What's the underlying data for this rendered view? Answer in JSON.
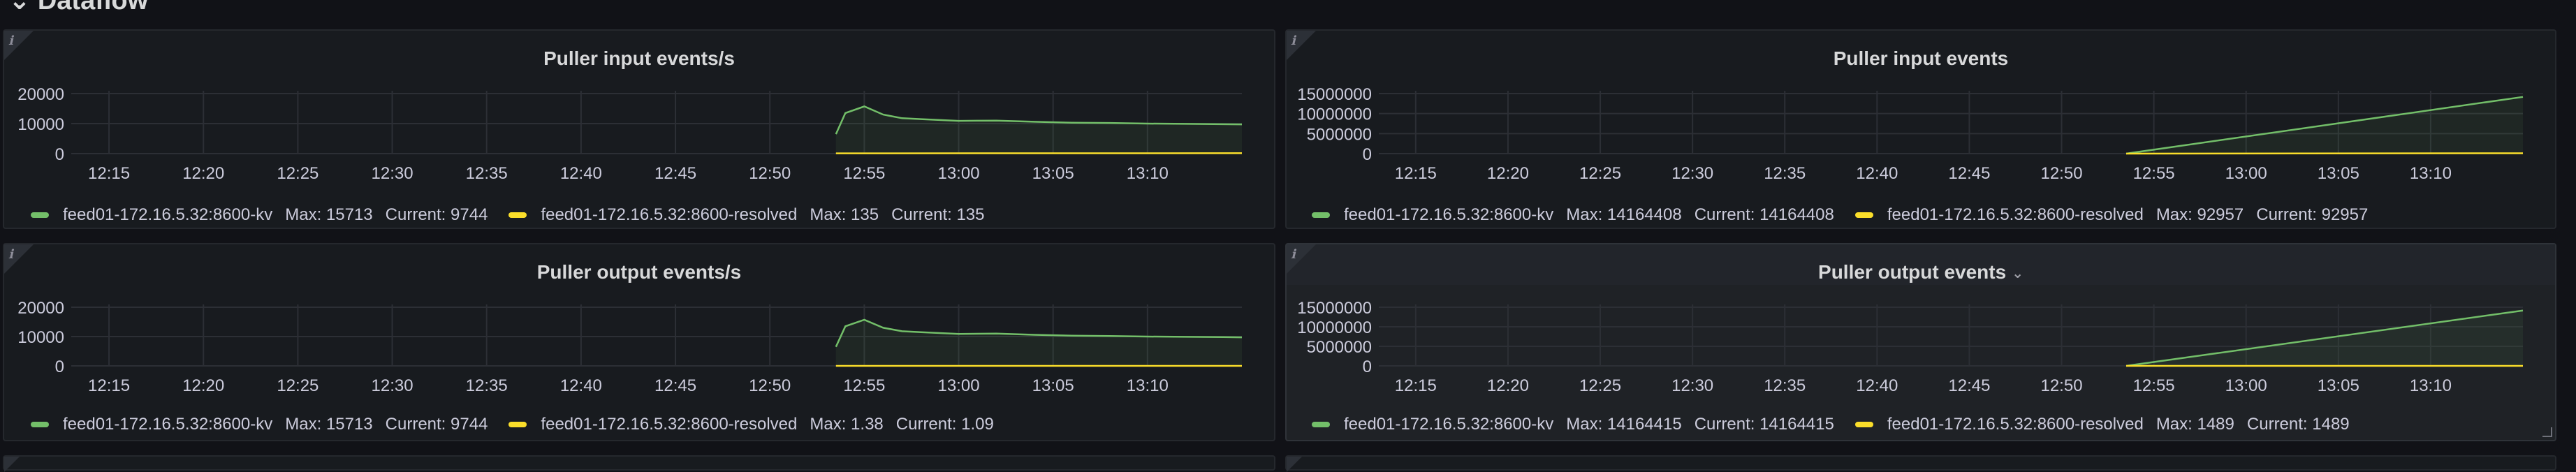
{
  "row": {
    "title": "Dataflow",
    "chevron_icon": "chevron-down-icon"
  },
  "info_icon": "ℹ",
  "x_ticks": [
    "12:15",
    "12:20",
    "12:25",
    "12:30",
    "12:35",
    "12:40",
    "12:45",
    "12:50",
    "12:55",
    "13:00",
    "13:05",
    "13:10"
  ],
  "colors": {
    "kv": "#73bf69",
    "resolved": "#fade2a"
  },
  "chart_data": [
    {
      "type": "line",
      "title": "Puller input events/s",
      "x_ticks": [
        "12:15",
        "12:20",
        "12:25",
        "12:30",
        "12:35",
        "12:40",
        "12:45",
        "12:50",
        "12:55",
        "13:00",
        "13:05",
        "13:10"
      ],
      "y_ticks": [
        "20000",
        "10000",
        "0"
      ],
      "ylim": [
        0,
        20000
      ],
      "grid": true,
      "legend_position": "bottom",
      "series": [
        {
          "name": "feed01-172.16.5.32:8600-kv",
          "color": "#73bf69",
          "max": "15713",
          "current": "9744",
          "points": [
            [
              "12:53:30",
              6500
            ],
            [
              "12:54",
              13500
            ],
            [
              "12:55",
              15713
            ],
            [
              "12:56",
              13000
            ],
            [
              "12:57",
              11800
            ],
            [
              "12:58",
              11500
            ],
            [
              "13:00",
              10900
            ],
            [
              "13:02",
              11000
            ],
            [
              "13:04",
              10600
            ],
            [
              "13:06",
              10300
            ],
            [
              "13:08",
              10200
            ],
            [
              "13:10",
              10000
            ],
            [
              "13:12",
              9900
            ],
            [
              "13:14",
              9800
            ],
            [
              "13:15",
              9744
            ]
          ]
        },
        {
          "name": "feed01-172.16.5.32:8600-resolved",
          "color": "#fade2a",
          "max": "135",
          "current": "135",
          "points": [
            [
              "12:53:30",
              100
            ],
            [
              "13:15",
              135
            ]
          ]
        }
      ]
    },
    {
      "type": "line",
      "title": "Puller input events",
      "x_ticks": [
        "12:15",
        "12:20",
        "12:25",
        "12:30",
        "12:35",
        "12:40",
        "12:45",
        "12:50",
        "12:55",
        "13:00",
        "13:05",
        "13:10"
      ],
      "y_ticks": [
        "15000000",
        "10000000",
        "5000000",
        "0"
      ],
      "ylim": [
        0,
        15000000
      ],
      "grid": true,
      "legend_position": "bottom",
      "series": [
        {
          "name": "feed01-172.16.5.32:8600-kv",
          "color": "#73bf69",
          "max": "14164408",
          "current": "14164408",
          "points": [
            [
              "12:53:30",
              0
            ],
            [
              "13:15",
              14164408
            ]
          ]
        },
        {
          "name": "feed01-172.16.5.32:8600-resolved",
          "color": "#fade2a",
          "max": "92957",
          "current": "92957",
          "points": [
            [
              "12:53:30",
              0
            ],
            [
              "13:15",
              92957
            ]
          ]
        }
      ]
    },
    {
      "type": "line",
      "title": "Puller output events/s",
      "x_ticks": [
        "12:15",
        "12:20",
        "12:25",
        "12:30",
        "12:35",
        "12:40",
        "12:45",
        "12:50",
        "12:55",
        "13:00",
        "13:05",
        "13:10"
      ],
      "y_ticks": [
        "20000",
        "10000",
        "0"
      ],
      "ylim": [
        0,
        20000
      ],
      "grid": true,
      "legend_position": "bottom",
      "series": [
        {
          "name": "feed01-172.16.5.32:8600-kv",
          "color": "#73bf69",
          "max": "15713",
          "current": "9744",
          "points": [
            [
              "12:53:30",
              6500
            ],
            [
              "12:54",
              13500
            ],
            [
              "12:55",
              15713
            ],
            [
              "12:56",
              13000
            ],
            [
              "12:57",
              11800
            ],
            [
              "12:58",
              11500
            ],
            [
              "13:00",
              10900
            ],
            [
              "13:02",
              11000
            ],
            [
              "13:04",
              10600
            ],
            [
              "13:06",
              10300
            ],
            [
              "13:08",
              10200
            ],
            [
              "13:10",
              10000
            ],
            [
              "13:12",
              9900
            ],
            [
              "13:14",
              9800
            ],
            [
              "13:15",
              9744
            ]
          ]
        },
        {
          "name": "feed01-172.16.5.32:8600-resolved",
          "color": "#fade2a",
          "max": "1.38",
          "current": "1.09",
          "points": [
            [
              "12:53:30",
              1.2
            ],
            [
              "13:15",
              1.09
            ]
          ]
        }
      ]
    },
    {
      "type": "line",
      "title": "Puller output events",
      "title_icon": "chevron-down-icon",
      "x_ticks": [
        "12:15",
        "12:20",
        "12:25",
        "12:30",
        "12:35",
        "12:40",
        "12:45",
        "12:50",
        "12:55",
        "13:00",
        "13:05",
        "13:10"
      ],
      "y_ticks": [
        "15000000",
        "10000000",
        "5000000",
        "0"
      ],
      "ylim": [
        0,
        15000000
      ],
      "grid": true,
      "legend_position": "bottom",
      "series": [
        {
          "name": "feed01-172.16.5.32:8600-kv",
          "color": "#73bf69",
          "max": "14164415",
          "current": "14164415",
          "points": [
            [
              "12:53:30",
              0
            ],
            [
              "13:15",
              14164415
            ]
          ]
        },
        {
          "name": "feed01-172.16.5.32:8600-resolved",
          "color": "#fade2a",
          "max": "1489",
          "current": "1489",
          "points": [
            [
              "12:53:30",
              0
            ],
            [
              "13:15",
              1489
            ]
          ]
        }
      ]
    }
  ],
  "legend_labels": {
    "max": "Max:",
    "current": "Current:"
  }
}
